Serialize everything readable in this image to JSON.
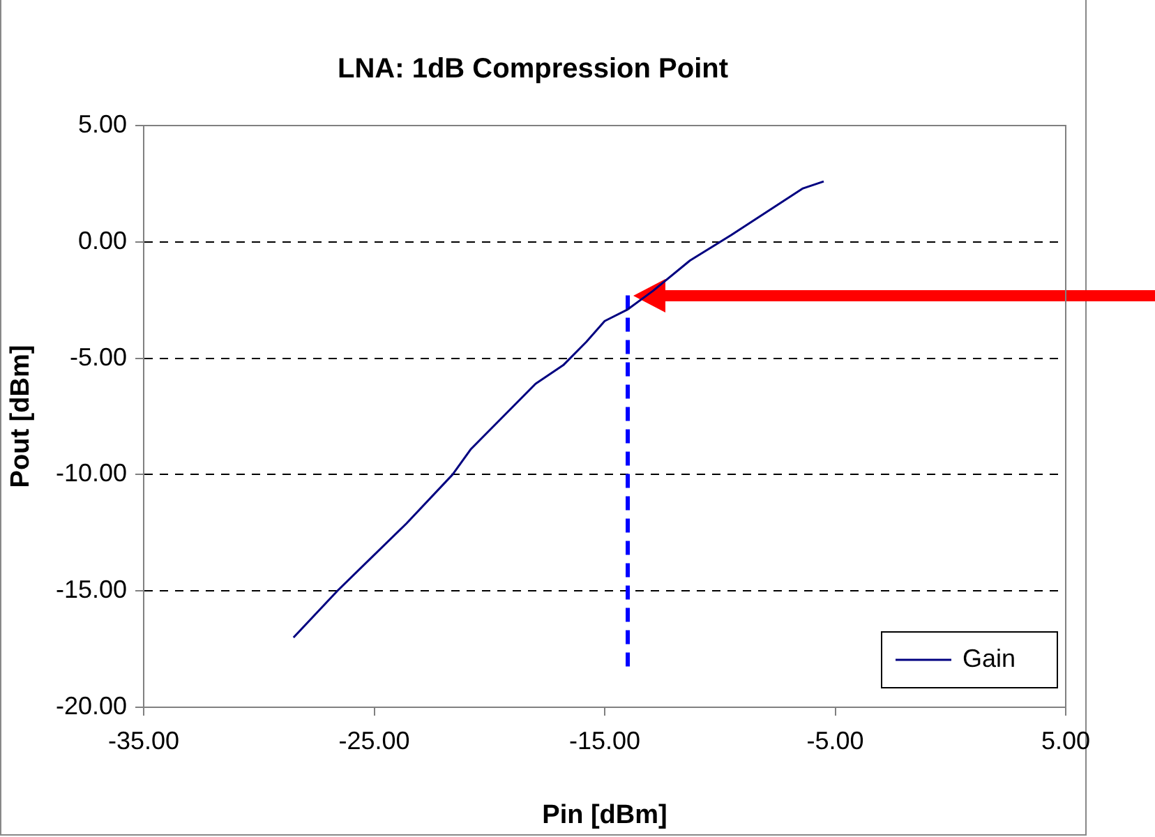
{
  "chart_data": {
    "type": "line",
    "title": "LNA: 1dB Compression Point",
    "xlabel": "Pin [dBm]",
    "ylabel": "Pout [dBm]",
    "xlim": [
      -35,
      5
    ],
    "xticks": [
      {
        "value": -35,
        "label": "-35.00"
      },
      {
        "value": -25,
        "label": "-25.00"
      },
      {
        "value": -15,
        "label": "-15.00"
      },
      {
        "value": -5,
        "label": "-5.00"
      },
      {
        "value": 5,
        "label": "5.00"
      }
    ],
    "ylim": [
      -20,
      5
    ],
    "yticks": [
      {
        "value": -20,
        "label": "-20.00"
      },
      {
        "value": -15,
        "label": "-15.00"
      },
      {
        "value": -10,
        "label": "-10.00"
      },
      {
        "value": -5,
        "label": "-5.00"
      },
      {
        "value": 0,
        "label": "0.00"
      },
      {
        "value": 5,
        "label": "5.00"
      }
    ],
    "grid": "y",
    "legend": "bottom right",
    "marker": "none",
    "series": [
      {
        "name": "Gain",
        "color": "#000080",
        "line_style": "solid",
        "x": [
          -28.5,
          -26.6,
          -23.6,
          -21.6,
          -20.8,
          -18.0,
          -16.8,
          -15.8,
          -15.0,
          -14.0,
          -12.9,
          -11.3,
          -9.5,
          -6.4,
          -5.5
        ],
        "values": [
          -17.0,
          -15.0,
          -12.1,
          -10.0,
          -8.9,
          -6.1,
          -5.3,
          -4.3,
          -3.4,
          -2.9,
          -2.1,
          -0.8,
          0.3,
          2.3,
          2.6
        ]
      },
      {
        "color": "#0000ff",
        "line_style": "dashed",
        "x": [
          -14.0,
          -14.0
        ],
        "values": [
          -2.3,
          -18.4
        ]
      }
    ]
  }
}
